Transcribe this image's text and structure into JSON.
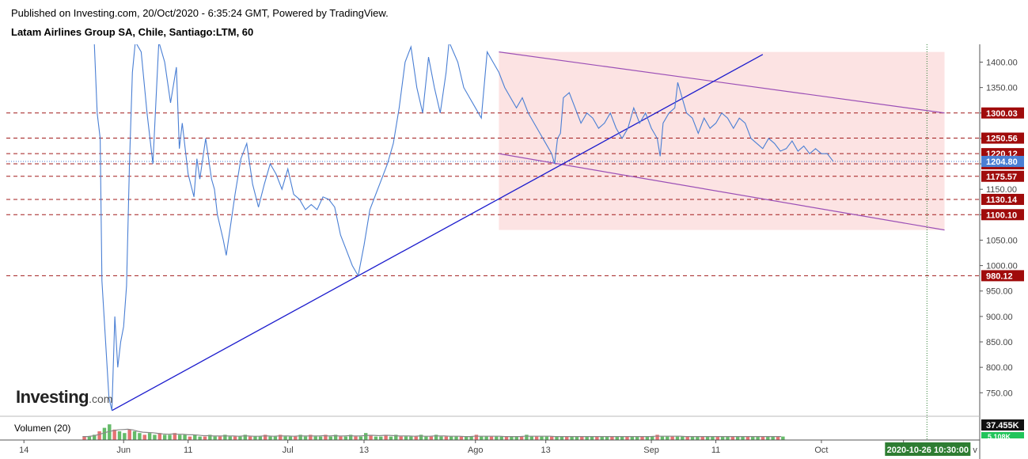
{
  "header": {
    "published": "Published on Investing.com, 20/Oct/2020 - 6:35:24 GMT, Powered by TradingView.",
    "instrument": "Latam Airlines Group SA, Chile, Santiago:LTM, 60"
  },
  "logo": {
    "main": "Investing",
    "suffix": ".com"
  },
  "volume": {
    "label": "Volumen (20)",
    "badge_top": "37.455K",
    "badge_bottom": "5.108K"
  },
  "x_axis": {
    "ticks": [
      "14",
      "Jun",
      "11",
      "Jul",
      "13",
      "Ago",
      "13",
      "Sep",
      "11",
      "Oct",
      "14"
    ],
    "tick_positions": [
      0,
      17,
      28,
      45,
      58,
      77,
      89,
      107,
      118,
      136,
      150
    ],
    "cursor_label": "2020-10-26 10:30:00",
    "cursor_position": 154,
    "end_label": "v"
  },
  "colors": {
    "price_line": "#4a7fd4",
    "trend_line": "#1c1ccd",
    "channel_border": "#9b4fb6",
    "channel_fill": "#fbdede",
    "level_line": "#a11b1b",
    "level_badge": "#a00b0b",
    "last_price_badge": "#4a7fd4",
    "cursor_line": "#2e7d32",
    "cursor_badge": "#2e7d32"
  },
  "chart_data": {
    "type": "line",
    "title": "Latam Airlines Group SA, Chile, Santiago:LTM, 60",
    "xlabel": "",
    "ylabel": "",
    "ylim": [
      710,
      1435
    ],
    "y_ticks": [
      750,
      800,
      850,
      900,
      950,
      1000,
      1050,
      1100,
      1150,
      1200,
      1250,
      1300,
      1350,
      1400
    ],
    "y_tick_labels": [
      "750.00",
      "800.00",
      "850.00",
      "900.00",
      "950.00",
      "1000.00",
      "1050.00",
      "1100.00",
      "1150.00",
      "1200.00",
      "1250.00",
      "1300.00",
      "1350.00",
      "1400.00"
    ],
    "bar_index_range": [
      -3,
      163
    ],
    "series": [
      {
        "points": [
          [
            12,
            1440
          ],
          [
            12.5,
            1300
          ],
          [
            13,
            1250
          ],
          [
            13.3,
            970
          ],
          [
            14.5,
            740
          ],
          [
            15,
            715
          ],
          [
            15.5,
            900
          ],
          [
            16,
            800
          ],
          [
            16.5,
            850
          ],
          [
            17,
            880
          ],
          [
            17.5,
            960
          ],
          [
            18,
            1200
          ],
          [
            18.5,
            1380
          ],
          [
            19,
            1440
          ],
          [
            20,
            1420
          ],
          [
            21,
            1300
          ],
          [
            22,
            1200
          ],
          [
            23,
            1440
          ],
          [
            24,
            1400
          ],
          [
            25,
            1320
          ],
          [
            26,
            1390
          ],
          [
            26.5,
            1230
          ],
          [
            27,
            1280
          ],
          [
            28,
            1180
          ],
          [
            29,
            1135
          ],
          [
            29.5,
            1210
          ],
          [
            30,
            1170
          ],
          [
            31,
            1250
          ],
          [
            32,
            1170
          ],
          [
            32.5,
            1150
          ],
          [
            33,
            1100
          ],
          [
            34,
            1050
          ],
          [
            34.5,
            1020
          ],
          [
            35,
            1060
          ],
          [
            36,
            1140
          ],
          [
            37,
            1210
          ],
          [
            38,
            1240
          ],
          [
            39,
            1160
          ],
          [
            40,
            1115
          ],
          [
            41,
            1160
          ],
          [
            42,
            1200
          ],
          [
            43,
            1180
          ],
          [
            44,
            1150
          ],
          [
            45,
            1190
          ],
          [
            46,
            1140
          ],
          [
            47,
            1130
          ],
          [
            48,
            1110
          ],
          [
            49,
            1120
          ],
          [
            50,
            1110
          ],
          [
            51,
            1135
          ],
          [
            52,
            1130
          ],
          [
            53,
            1115
          ],
          [
            54,
            1060
          ],
          [
            55,
            1030
          ],
          [
            56,
            1000
          ],
          [
            57,
            980
          ],
          [
            58,
            1040
          ],
          [
            59,
            1110
          ],
          [
            60,
            1140
          ],
          [
            61,
            1170
          ],
          [
            62,
            1200
          ],
          [
            63,
            1240
          ],
          [
            64,
            1310
          ],
          [
            65,
            1400
          ],
          [
            66,
            1430
          ],
          [
            67,
            1350
          ],
          [
            68,
            1300
          ],
          [
            69,
            1410
          ],
          [
            70,
            1350
          ],
          [
            71,
            1300
          ],
          [
            72,
            1380
          ],
          [
            72.5,
            1440
          ],
          [
            74,
            1400
          ],
          [
            75,
            1350
          ],
          [
            76,
            1330
          ],
          [
            77,
            1310
          ],
          [
            78,
            1290
          ],
          [
            79,
            1420
          ],
          [
            80,
            1400
          ],
          [
            81,
            1380
          ],
          [
            82,
            1350
          ],
          [
            83,
            1330
          ],
          [
            84,
            1310
          ],
          [
            85,
            1330
          ],
          [
            86,
            1300
          ],
          [
            87,
            1280
          ],
          [
            88,
            1260
          ],
          [
            89,
            1240
          ],
          [
            90,
            1220
          ],
          [
            90.5,
            1200
          ],
          [
            91,
            1250
          ],
          [
            91.5,
            1260
          ],
          [
            92,
            1330
          ],
          [
            93,
            1340
          ],
          [
            94,
            1310
          ],
          [
            95,
            1280
          ],
          [
            96,
            1300
          ],
          [
            97,
            1290
          ],
          [
            98,
            1270
          ],
          [
            99,
            1280
          ],
          [
            100,
            1300
          ],
          [
            101,
            1270
          ],
          [
            102,
            1250
          ],
          [
            103,
            1270
          ],
          [
            104,
            1310
          ],
          [
            105,
            1280
          ],
          [
            106,
            1300
          ],
          [
            107,
            1270
          ],
          [
            108,
            1250
          ],
          [
            108.5,
            1215
          ],
          [
            109,
            1280
          ],
          [
            110,
            1300
          ],
          [
            111,
            1310
          ],
          [
            111.5,
            1360
          ],
          [
            112,
            1340
          ],
          [
            113,
            1300
          ],
          [
            114,
            1290
          ],
          [
            115,
            1260
          ],
          [
            116,
            1290
          ],
          [
            117,
            1270
          ],
          [
            118,
            1280
          ],
          [
            119,
            1300
          ],
          [
            120,
            1290
          ],
          [
            121,
            1270
          ],
          [
            122,
            1290
          ],
          [
            123,
            1280
          ],
          [
            124,
            1250
          ],
          [
            125,
            1240
          ],
          [
            126,
            1230
          ],
          [
            127,
            1250
          ],
          [
            128,
            1240
          ],
          [
            129,
            1225
          ],
          [
            130,
            1230
          ],
          [
            131,
            1245
          ],
          [
            132,
            1225
          ],
          [
            133,
            1235
          ],
          [
            134,
            1220
          ],
          [
            135,
            1230
          ],
          [
            136,
            1220
          ],
          [
            137,
            1220
          ],
          [
            138,
            1205
          ]
        ]
      }
    ],
    "levels": [
      1300.03,
      1250.56,
      1220.12,
      1200.07,
      1175.57,
      1130.14,
      1100.1,
      980.12
    ],
    "level_labels": [
      "1300.03",
      "1250.56",
      "1220.12",
      "1200.07",
      "1175.57",
      "1130.14",
      "1100.10",
      "980.12"
    ],
    "last_price": 1204.8,
    "last_price_label": "1204.80",
    "trend_line": [
      [
        15,
        715
      ],
      [
        126,
        1415
      ]
    ],
    "channel": {
      "upper": [
        [
          81,
          1420
        ],
        [
          157,
          1300
        ]
      ],
      "lower": [
        [
          81,
          1220
        ],
        [
          157,
          1070
        ]
      ]
    },
    "volume_bars": [
      2,
      2,
      3,
      5,
      7,
      9,
      6,
      5,
      4,
      6,
      5,
      4,
      3,
      4,
      3,
      4,
      3,
      3,
      4,
      3,
      3,
      2,
      3,
      2,
      2,
      3,
      2,
      2,
      3,
      2,
      2,
      2,
      3,
      2,
      2,
      2,
      3,
      2,
      2,
      3,
      2,
      2,
      2,
      3,
      2,
      3,
      2,
      2,
      3,
      2,
      3,
      2,
      2,
      3,
      2,
      2,
      4,
      3,
      2,
      2,
      3,
      2,
      3,
      2,
      2,
      2,
      2,
      3,
      2,
      2,
      3,
      2,
      2,
      2,
      2,
      2,
      2,
      2,
      3,
      2,
      2,
      2,
      2,
      2,
      2,
      2,
      2,
      2,
      3,
      2,
      2,
      2,
      2,
      2,
      2,
      2,
      2,
      2,
      2,
      2,
      2,
      2,
      2,
      2,
      2,
      2,
      2,
      2,
      2,
      2,
      2,
      2,
      2,
      2,
      3,
      2,
      2,
      2,
      2,
      2,
      2,
      2,
      2,
      2,
      2,
      2,
      2,
      2,
      2,
      2,
      2,
      2,
      2,
      2,
      2,
      2,
      2,
      2,
      2,
      2
    ],
    "grid": false,
    "legend": "none"
  }
}
